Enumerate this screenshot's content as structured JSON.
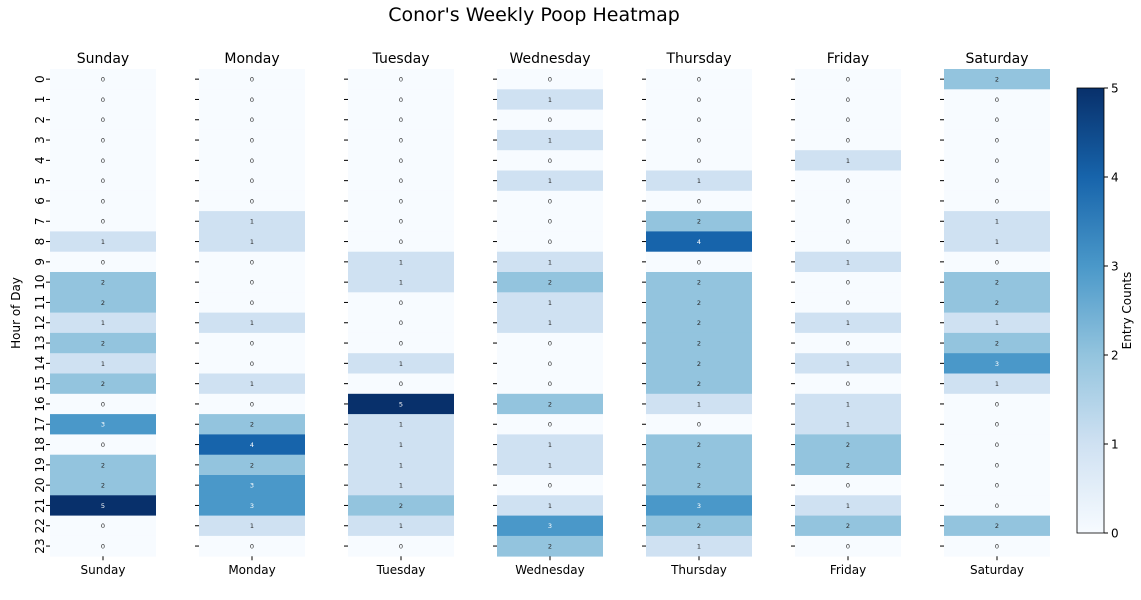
{
  "chart_data": {
    "type": "heatmap",
    "title": "Conor's Weekly Poop Heatmap",
    "ylabel": "Hour of Day",
    "colorbar_label": "Entry Counts",
    "colorbar_ticks": [
      "0",
      "1",
      "2",
      "3",
      "4",
      "5"
    ],
    "vmin": 0,
    "vmax": 5,
    "colormap": "Blues",
    "colors": [
      "#f7fbff",
      "#cfe1f2",
      "#93c4de",
      "#4a98c9",
      "#1764ab",
      "#08306b"
    ],
    "hours": [
      "0",
      "1",
      "2",
      "3",
      "4",
      "5",
      "6",
      "7",
      "8",
      "9",
      "10",
      "11",
      "12",
      "13",
      "14",
      "15",
      "16",
      "17",
      "18",
      "19",
      "20",
      "21",
      "22",
      "23"
    ],
    "days": [
      {
        "name": "Sunday",
        "values": [
          0,
          0,
          0,
          0,
          0,
          0,
          0,
          0,
          1,
          0,
          2,
          2,
          1,
          2,
          1,
          2,
          0,
          3,
          0,
          2,
          2,
          5,
          0,
          0
        ]
      },
      {
        "name": "Monday",
        "values": [
          0,
          0,
          0,
          0,
          0,
          0,
          0,
          1,
          1,
          0,
          0,
          0,
          1,
          0,
          0,
          1,
          0,
          2,
          4,
          2,
          3,
          3,
          1,
          0
        ]
      },
      {
        "name": "Tuesday",
        "values": [
          0,
          0,
          0,
          0,
          0,
          0,
          0,
          0,
          0,
          1,
          1,
          0,
          0,
          0,
          1,
          0,
          5,
          1,
          1,
          1,
          1,
          2,
          1,
          0
        ]
      },
      {
        "name": "Wednesday",
        "values": [
          0,
          1,
          0,
          1,
          0,
          1,
          0,
          0,
          0,
          1,
          2,
          1,
          1,
          0,
          0,
          0,
          2,
          0,
          1,
          1,
          0,
          1,
          3,
          2
        ]
      },
      {
        "name": "Thursday",
        "values": [
          0,
          0,
          0,
          0,
          0,
          1,
          0,
          2,
          4,
          0,
          2,
          2,
          2,
          2,
          2,
          2,
          1,
          0,
          2,
          2,
          2,
          3,
          2,
          1
        ]
      },
      {
        "name": "Friday",
        "values": [
          0,
          0,
          0,
          0,
          1,
          0,
          0,
          0,
          0,
          1,
          0,
          0,
          1,
          0,
          1,
          0,
          1,
          1,
          2,
          2,
          0,
          1,
          2,
          0
        ]
      },
      {
        "name": "Saturday",
        "values": [
          2,
          0,
          0,
          0,
          0,
          0,
          0,
          1,
          1,
          0,
          2,
          2,
          1,
          2,
          3,
          1,
          0,
          0,
          0,
          0,
          0,
          0,
          2,
          0
        ]
      }
    ]
  }
}
